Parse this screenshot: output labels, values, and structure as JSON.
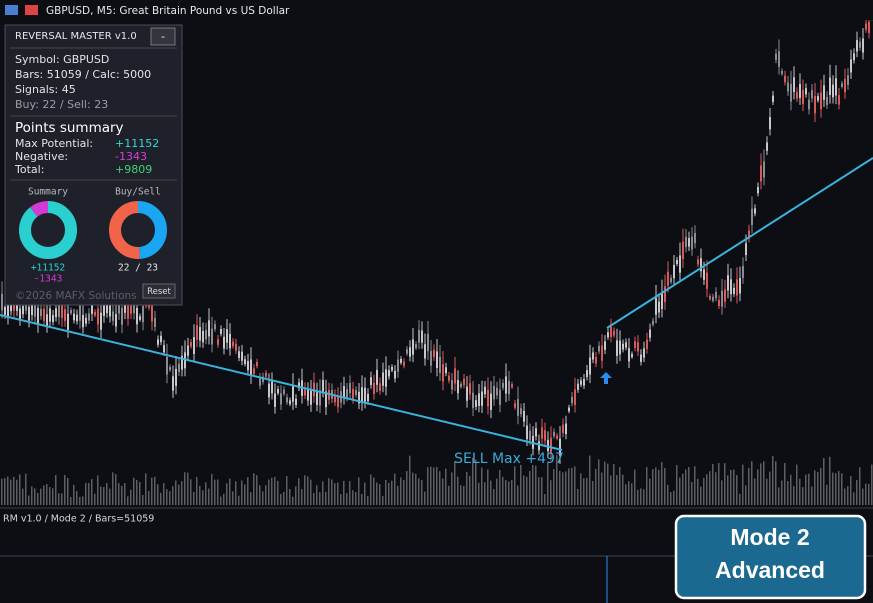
{
  "window_title": "GBPUSD, M5:  Great Britain Pound vs US Dollar",
  "panel": {
    "title": "REVERSAL MASTER v1.0",
    "collapse_button": "-",
    "info": [
      "Symbol: GBPUSD",
      "Bars: 51059 / Calc: 5000",
      "Signals: 45",
      "Buy: 22 / Sell: 23"
    ],
    "points_heading": "Points summary",
    "rows": [
      {
        "label": "Max Potential:",
        "value": "+11152",
        "color": "#35d6d6"
      },
      {
        "label": "Negative:",
        "value": "-1343",
        "color": "#d640d6"
      },
      {
        "label": "Total:",
        "value": "+9809",
        "color": "#3fd07a"
      }
    ],
    "donuts": [
      {
        "title": "Summary",
        "values": [
          11152,
          1343
        ],
        "colors": [
          "#2ad0d0",
          "#d23ad6"
        ],
        "labels": [
          "+11152",
          "-1343"
        ]
      },
      {
        "title": "Buy/Sell",
        "values": [
          22,
          23
        ],
        "colors": [
          "#1aa6f2",
          "#f2644a"
        ],
        "labels": [
          "22 / 23"
        ]
      }
    ],
    "copyright": "©2026 MAFX Solutions",
    "reset": "Reset"
  },
  "annotation": "SELL Max +497",
  "indicator_label": "RM v1.0 / Mode 2 / Bars=51059",
  "badge": [
    "Mode 2",
    "Advanced"
  ]
}
